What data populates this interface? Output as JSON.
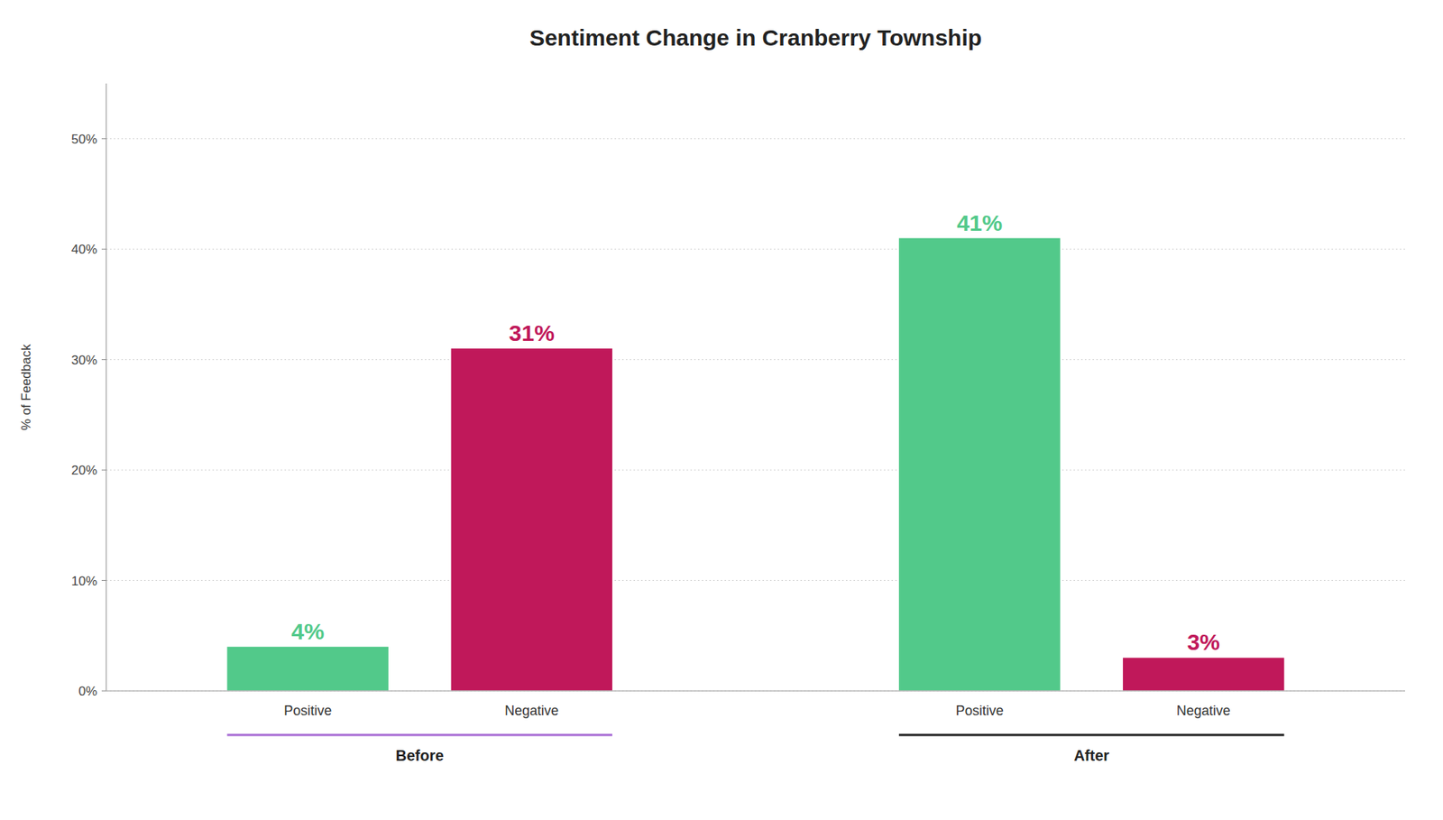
{
  "chart_data": {
    "type": "bar",
    "title": "Sentiment Change in Cranberry Township",
    "y_label": "% of Feedback",
    "categories": [
      "Positive",
      "Negative",
      "Positive",
      "Negative"
    ],
    "values": [
      4,
      31,
      41,
      3
    ],
    "value_labels": [
      "4%",
      "31%",
      "41%",
      "3%"
    ],
    "colors": [
      "#52c98a",
      "#c0185a",
      "#52c98a",
      "#c0185a"
    ],
    "groups": [
      {
        "name": "Before",
        "color": "#a86cd5"
      },
      {
        "name": "After",
        "color": "#222222"
      }
    ],
    "ylim": [
      0,
      55
    ],
    "yticks": [
      {
        "value": 0,
        "label": "0%"
      },
      {
        "value": 10,
        "label": "10%"
      },
      {
        "value": 20,
        "label": "20%"
      },
      {
        "value": 30,
        "label": "30%"
      },
      {
        "value": 40,
        "label": "40%"
      },
      {
        "value": 50,
        "label": "50%"
      }
    ],
    "grid": true,
    "data_labels": true
  }
}
